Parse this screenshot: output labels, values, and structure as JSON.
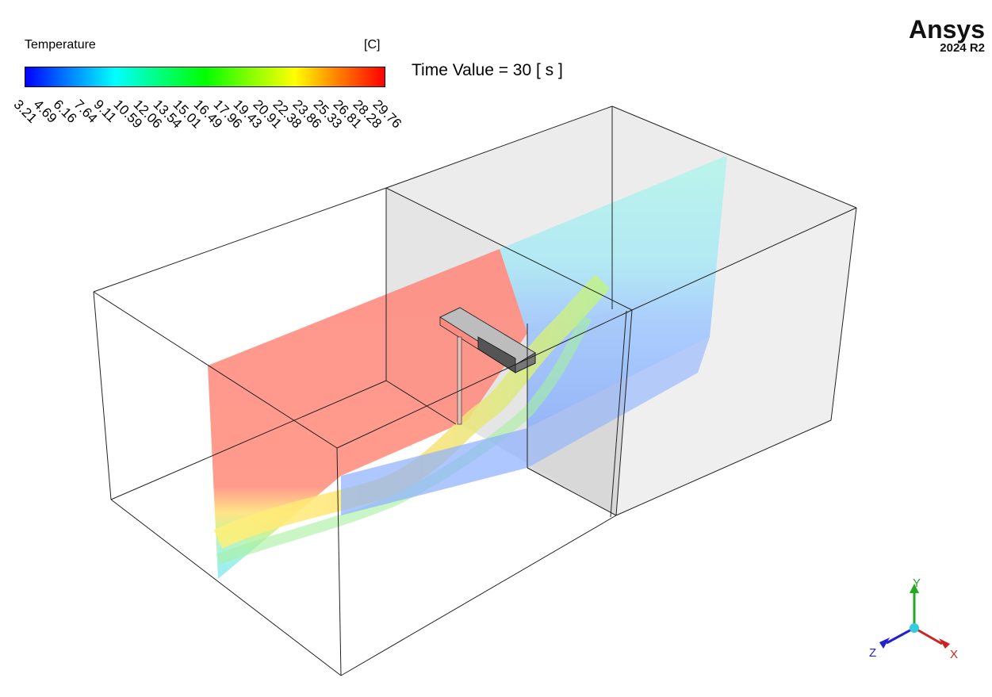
{
  "legend": {
    "title": "Temperature",
    "unit": "[C]",
    "ticks": [
      "3.21",
      "4.69",
      "6.16",
      "7.64",
      "9.11",
      "10.59",
      "12.06",
      "13.54",
      "15.01",
      "16.49",
      "17.96",
      "19.43",
      "20.91",
      "22.38",
      "23.86",
      "25.33",
      "26.81",
      "28.28",
      "29.76"
    ]
  },
  "time_label": "Time Value = 30 [ s ]",
  "brand": {
    "name": "Ansys",
    "version": "2024 R2"
  },
  "axes": {
    "y": "Y",
    "z": "Z",
    "x": "X"
  },
  "colors": {
    "hot": "#ff8a80",
    "cold": "#8fb2ff",
    "mid": "#b3f2e8",
    "wall": "#d9d9d9"
  }
}
